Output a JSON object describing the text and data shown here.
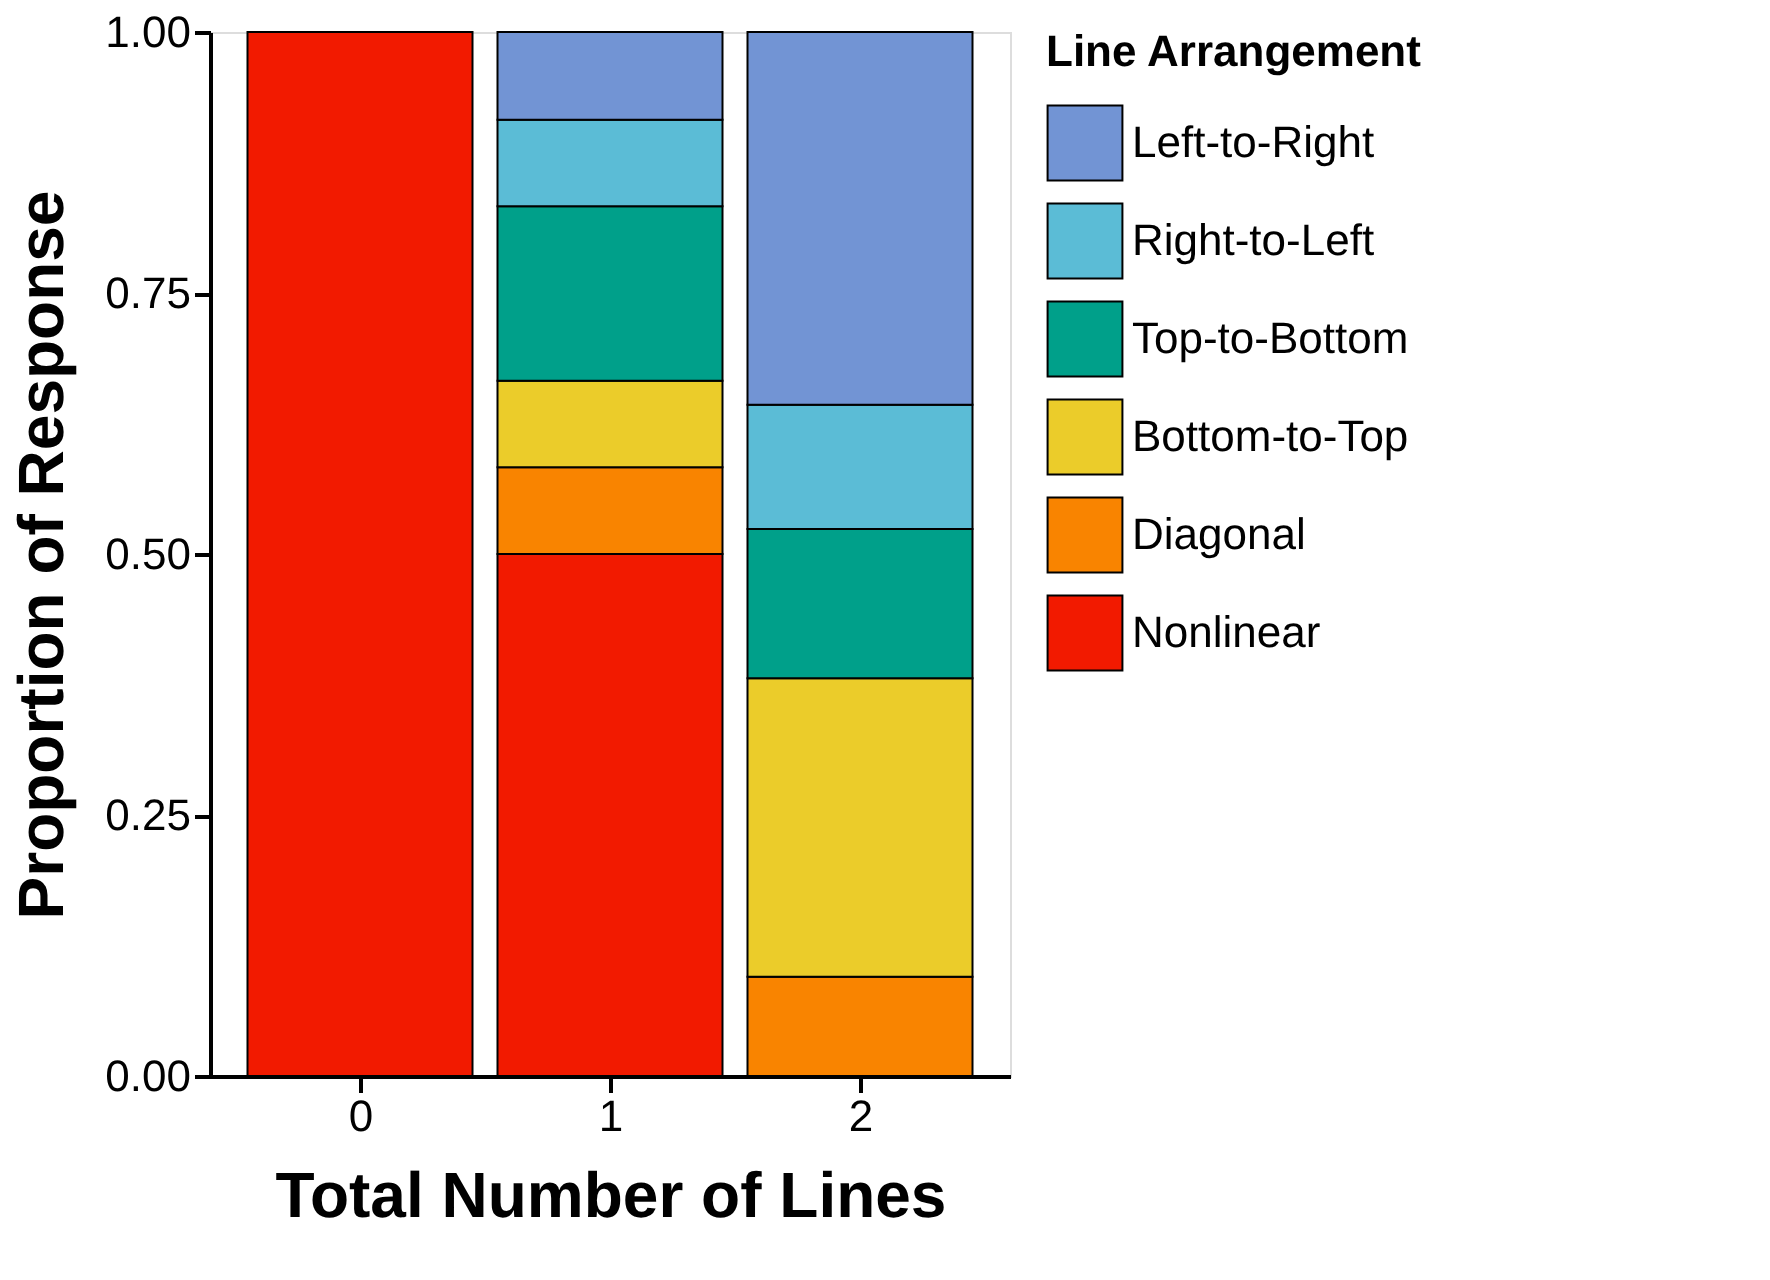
{
  "chart_data": {
    "type": "bar",
    "stacked": true,
    "xlabel": "Total Number of Lines",
    "ylabel": "Proportion of Response",
    "legend_title": "Line Arrangement",
    "legend": "right",
    "grid": false,
    "categories": [
      "0",
      "1",
      "2"
    ],
    "series": [
      {
        "name": "Nonlinear",
        "color": "#f21a00",
        "values": [
          1.0,
          0.5,
          null
        ]
      },
      {
        "name": "Diagonal",
        "color": "#f98400",
        "values": [
          null,
          0.083,
          0.095
        ]
      },
      {
        "name": "Bottom-to-Top",
        "color": "#ebcc2a",
        "values": [
          null,
          0.083,
          0.286
        ]
      },
      {
        "name": "Top-to-Bottom",
        "color": "#00a08a",
        "values": [
          null,
          0.167,
          0.143
        ]
      },
      {
        "name": "Right-to-Left",
        "color": "#5bbcd6",
        "values": [
          null,
          0.083,
          0.119
        ]
      },
      {
        "name": "Left-to-Right",
        "color": "#7294d4",
        "values": [
          null,
          0.084,
          0.357
        ]
      }
    ],
    "ylim": [
      0,
      1
    ],
    "yticks": [
      {
        "value": 0,
        "label": "0.00"
      },
      {
        "value": 0.25,
        "label": "0.25"
      },
      {
        "value": 0.5,
        "label": "0.50"
      },
      {
        "value": 0.75,
        "label": "0.75"
      },
      {
        "value": 1,
        "label": "1.00"
      }
    ]
  }
}
